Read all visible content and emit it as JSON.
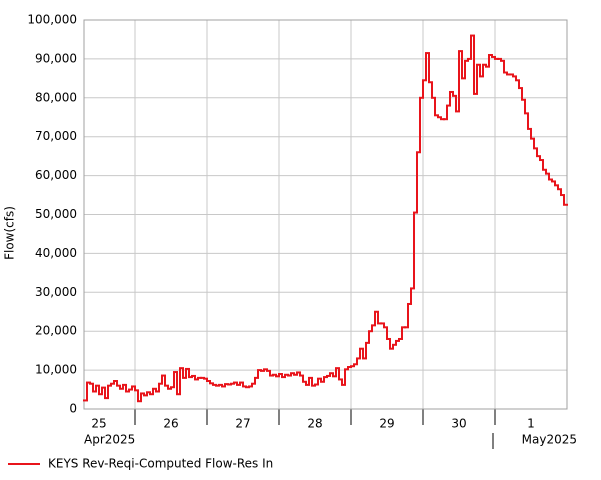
{
  "chart_data": {
    "type": "step-line",
    "ylabel": "Flow(cfs)",
    "ylim": [
      0,
      100000
    ],
    "yticks": [
      0,
      {
        "value": 10000,
        "label": "10,000"
      },
      {
        "value": 20000,
        "label": "20,000"
      },
      {
        "value": 30000,
        "label": "30,000"
      },
      {
        "value": 40000,
        "label": "40,000"
      },
      {
        "value": 50000,
        "label": "50,000"
      },
      {
        "value": 60000,
        "label": "60,000"
      },
      {
        "value": 70000,
        "label": "70,000"
      },
      {
        "value": 80000,
        "label": "80,000"
      },
      {
        "value": 90000,
        "label": "90,000"
      },
      {
        "value": 100000,
        "label": "100,000"
      }
    ],
    "xlim": [
      "2025-04-25 07:00",
      "2025-05-02 00:00"
    ],
    "xticks": [
      {
        "value": "2025-04-25 00:00",
        "label": "25"
      },
      {
        "value": "2025-04-26 00:00",
        "label": "26"
      },
      {
        "value": "2025-04-27 00:00",
        "label": "27"
      },
      {
        "value": "2025-04-28 00:00",
        "label": "28"
      },
      {
        "value": "2025-04-29 00:00",
        "label": "29"
      },
      {
        "value": "2025-04-30 00:00",
        "label": "30"
      },
      {
        "value": "2025-05-01 00:00",
        "label": "1"
      }
    ],
    "month_labels": [
      "Apr2025",
      "May2025"
    ],
    "grid": true,
    "x": [
      "2025-04-25 07:00",
      "2025-04-25 08:00",
      "2025-04-25 09:00",
      "2025-04-25 10:00",
      "2025-04-25 11:00",
      "2025-04-25 12:00",
      "2025-04-25 13:00",
      "2025-04-25 14:00",
      "2025-04-25 15:00",
      "2025-04-25 16:00",
      "2025-04-25 17:00",
      "2025-04-25 18:00",
      "2025-04-25 19:00",
      "2025-04-25 20:00",
      "2025-04-25 21:00",
      "2025-04-25 22:00",
      "2025-04-25 23:00",
      "2025-04-26 00:00",
      "2025-04-26 01:00",
      "2025-04-26 02:00",
      "2025-04-26 03:00",
      "2025-04-26 04:00",
      "2025-04-26 05:00",
      "2025-04-26 06:00",
      "2025-04-26 07:00",
      "2025-04-26 08:00",
      "2025-04-26 09:00",
      "2025-04-26 10:00",
      "2025-04-26 11:00",
      "2025-04-26 12:00",
      "2025-04-26 13:00",
      "2025-04-26 14:00",
      "2025-04-26 15:00",
      "2025-04-26 16:00",
      "2025-04-26 17:00",
      "2025-04-26 18:00",
      "2025-04-26 19:00",
      "2025-04-26 20:00",
      "2025-04-26 21:00",
      "2025-04-26 22:00",
      "2025-04-26 23:00",
      "2025-04-27 00:00",
      "2025-04-27 01:00",
      "2025-04-27 02:00",
      "2025-04-27 03:00",
      "2025-04-27 04:00",
      "2025-04-27 05:00",
      "2025-04-27 06:00",
      "2025-04-27 07:00",
      "2025-04-27 08:00",
      "2025-04-27 09:00",
      "2025-04-27 10:00",
      "2025-04-27 11:00",
      "2025-04-27 12:00",
      "2025-04-27 13:00",
      "2025-04-27 14:00",
      "2025-04-27 15:00",
      "2025-04-27 16:00",
      "2025-04-27 17:00",
      "2025-04-27 18:00",
      "2025-04-27 19:00",
      "2025-04-27 20:00",
      "2025-04-27 21:00",
      "2025-04-27 22:00",
      "2025-04-27 23:00",
      "2025-04-28 00:00",
      "2025-04-28 01:00",
      "2025-04-28 02:00",
      "2025-04-28 03:00",
      "2025-04-28 04:00",
      "2025-04-28 05:00",
      "2025-04-28 06:00",
      "2025-04-28 07:00",
      "2025-04-28 08:00",
      "2025-04-28 09:00",
      "2025-04-28 10:00",
      "2025-04-28 11:00",
      "2025-04-28 12:00",
      "2025-04-28 13:00",
      "2025-04-28 14:00",
      "2025-04-28 15:00",
      "2025-04-28 16:00",
      "2025-04-28 17:00",
      "2025-04-28 18:00",
      "2025-04-28 19:00",
      "2025-04-28 20:00",
      "2025-04-28 21:00",
      "2025-04-28 22:00",
      "2025-04-28 23:00",
      "2025-04-29 00:00",
      "2025-04-29 01:00",
      "2025-04-29 02:00",
      "2025-04-29 03:00",
      "2025-04-29 04:00",
      "2025-04-29 05:00",
      "2025-04-29 06:00",
      "2025-04-29 07:00",
      "2025-04-29 08:00",
      "2025-04-29 09:00",
      "2025-04-29 10:00",
      "2025-04-29 11:00",
      "2025-04-29 12:00",
      "2025-04-29 13:00",
      "2025-04-29 14:00",
      "2025-04-29 15:00",
      "2025-04-29 16:00",
      "2025-04-29 17:00",
      "2025-04-29 18:00",
      "2025-04-29 19:00",
      "2025-04-29 20:00",
      "2025-04-29 21:00",
      "2025-04-29 22:00",
      "2025-04-29 23:00",
      "2025-04-30 00:00",
      "2025-04-30 01:00",
      "2025-04-30 02:00",
      "2025-04-30 03:00",
      "2025-04-30 04:00",
      "2025-04-30 05:00",
      "2025-04-30 06:00",
      "2025-04-30 07:00",
      "2025-04-30 08:00",
      "2025-04-30 09:00",
      "2025-04-30 10:00",
      "2025-04-30 11:00",
      "2025-04-30 12:00",
      "2025-04-30 13:00",
      "2025-04-30 14:00",
      "2025-04-30 15:00",
      "2025-04-30 16:00",
      "2025-04-30 17:00",
      "2025-04-30 18:00",
      "2025-04-30 19:00",
      "2025-04-30 20:00",
      "2025-04-30 21:00",
      "2025-04-30 22:00",
      "2025-04-30 23:00",
      "2025-05-01 00:00",
      "2025-05-01 01:00",
      "2025-05-01 02:00",
      "2025-05-01 03:00",
      "2025-05-01 04:00",
      "2025-05-01 05:00",
      "2025-05-01 06:00",
      "2025-05-01 07:00",
      "2025-05-01 08:00",
      "2025-05-01 09:00",
      "2025-05-01 10:00",
      "2025-05-01 11:00",
      "2025-05-01 12:00",
      "2025-05-01 13:00",
      "2025-05-01 14:00",
      "2025-05-01 15:00",
      "2025-05-01 16:00",
      "2025-05-01 17:00",
      "2025-05-01 18:00",
      "2025-05-01 19:00",
      "2025-05-01 20:00",
      "2025-05-01 21:00",
      "2025-05-01 22:00",
      "2025-05-01 23:00"
    ],
    "series": [
      {
        "name": "KEYS Rev-Reqi-Computed Flow-Res In",
        "color": "#e8141b",
        "values": [
          2200,
          6800,
          6500,
          4500,
          6000,
          3800,
          5500,
          2800,
          6000,
          6500,
          7200,
          6000,
          5200,
          6200,
          4500,
          5000,
          5800,
          4800,
          2000,
          4000,
          3500,
          4300,
          3800,
          5200,
          4500,
          6500,
          8600,
          6000,
          5200,
          5600,
          9500,
          3800,
          10500,
          8000,
          10300,
          8200,
          8500,
          7600,
          8000,
          8000,
          7800,
          7200,
          6600,
          6200,
          6000,
          6200,
          5800,
          6400,
          6300,
          6500,
          6800,
          6200,
          6800,
          5800,
          5600,
          5800,
          6500,
          8000,
          10000,
          9800,
          10200,
          9800,
          8600,
          8800,
          8400,
          9000,
          8200,
          8800,
          8600,
          9200,
          8800,
          9400,
          8600,
          7000,
          6200,
          8000,
          6000,
          6300,
          7800,
          7000,
          8200,
          8500,
          9200,
          8400,
          10500,
          7600,
          6200,
          10200,
          10800,
          11000,
          11500,
          13000,
          15500,
          13000,
          17000,
          20000,
          21500,
          25000,
          22000,
          22000,
          21000,
          18000,
          15500,
          16500,
          17500,
          18000,
          21000,
          21000,
          27000,
          31000,
          50500,
          66000,
          80000,
          84500,
          91500,
          84000,
          80000,
          75500,
          75000,
          74500,
          74500,
          78000,
          81500,
          80500,
          76500,
          92000,
          85000,
          89500,
          90000,
          96000,
          81000,
          88500,
          85500,
          88500,
          88000,
          91000,
          90500,
          90000,
          90000,
          89500,
          86500,
          86000,
          86000,
          85500,
          84500,
          82500,
          79500,
          76000,
          72000,
          69500,
          67000,
          65000,
          64000,
          61500,
          60500,
          59000,
          58500,
          57500,
          56500,
          55000,
          52500
        ]
      }
    ]
  }
}
